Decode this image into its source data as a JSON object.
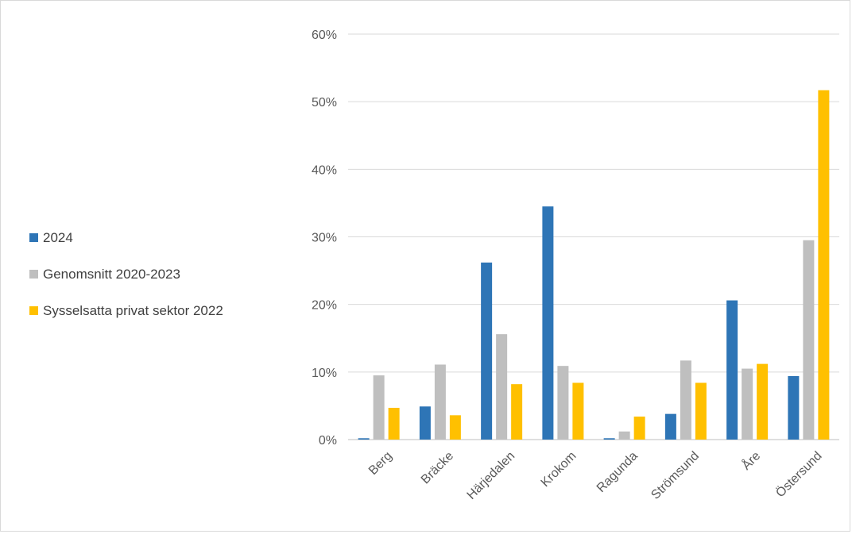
{
  "chart_data": {
    "type": "bar",
    "categories": [
      "Berg",
      "Bräcke",
      "Härjedalen",
      "Krokom",
      "Ragunda",
      "Strömsund",
      "Åre",
      "Östersund"
    ],
    "series": [
      {
        "name": "2024",
        "color": "#2E75B6",
        "values": [
          0.2,
          4.9,
          26.2,
          34.5,
          0.2,
          3.8,
          20.6,
          9.4
        ]
      },
      {
        "name": "Genomsnitt 2020-2023",
        "color": "#BFBFBF",
        "values": [
          9.5,
          11.1,
          15.6,
          10.9,
          1.2,
          11.7,
          10.5,
          29.5
        ]
      },
      {
        "name": "Sysselsatta privat sektor 2022",
        "color": "#FFC000",
        "values": [
          4.7,
          3.6,
          8.2,
          8.4,
          3.4,
          8.4,
          11.2,
          51.7
        ]
      }
    ],
    "y_ticks": [
      "0%",
      "10%",
      "20%",
      "30%",
      "40%",
      "50%",
      "60%"
    ],
    "ylim": [
      0,
      60
    ],
    "grid": true,
    "legend_position": "left"
  }
}
